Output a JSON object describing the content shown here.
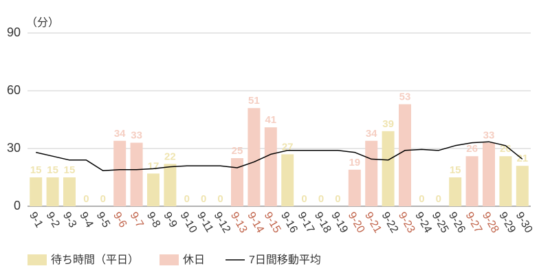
{
  "chart_data": {
    "type": "bar",
    "unit_label": "（分）",
    "categories": [
      "9-1",
      "9-2",
      "9-3",
      "9-4",
      "9-5",
      "9-6",
      "9-7",
      "9-8",
      "9-9",
      "9-10",
      "9-11",
      "9-12",
      "9-13",
      "9-14",
      "9-15",
      "9-16",
      "9-17",
      "9-18",
      "9-19",
      "9-20",
      "9-21",
      "9-22",
      "9-23",
      "9-24",
      "9-25",
      "9-26",
      "9-27",
      "9-28",
      "9-29",
      "9-30"
    ],
    "series": [
      {
        "name": "待ち時間（平日）",
        "type": "bar",
        "color": "#efe4b0",
        "label_color": "#333333",
        "values": [
          15,
          15,
          15,
          0,
          0,
          null,
          null,
          17,
          22,
          0,
          0,
          0,
          null,
          null,
          null,
          27,
          0,
          0,
          0,
          null,
          null,
          39,
          null,
          0,
          0,
          15,
          null,
          null,
          26,
          21
        ]
      },
      {
        "name": "休日",
        "type": "bar",
        "color": "#f5cec2",
        "label_color": "#c0634a",
        "values": [
          null,
          null,
          null,
          null,
          null,
          34,
          33,
          null,
          null,
          null,
          null,
          null,
          25,
          51,
          41,
          null,
          null,
          null,
          null,
          19,
          34,
          null,
          53,
          null,
          null,
          null,
          26,
          33,
          null,
          null
        ]
      },
      {
        "name": "7日間移動平均",
        "type": "line",
        "color": "#000000",
        "values": [
          28,
          26,
          24,
          24,
          18.5,
          19,
          19,
          19.5,
          20.5,
          21,
          21,
          21,
          20,
          23,
          27,
          29,
          29,
          29,
          29,
          28,
          24.5,
          24,
          29,
          29.5,
          29,
          31.5,
          33,
          33.5,
          31.5,
          24.5
        ]
      }
    ],
    "ylim": [
      0,
      90
    ],
    "yticks": [
      0,
      30,
      60,
      90
    ],
    "grid": true
  }
}
